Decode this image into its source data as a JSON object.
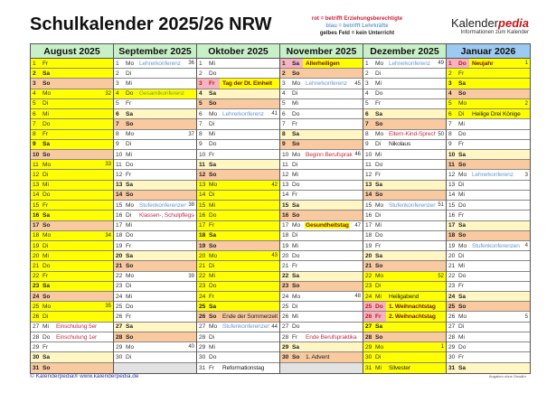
{
  "title": "Schulkalender 2025/26 NRW",
  "legend": {
    "red": "rot = betrifft Erziehungsberechtigte",
    "blue": "blau = betrifft Lehrkräfte",
    "yellow": "gelbes Feld =   kein Unterricht"
  },
  "brand": {
    "name_plain": "Kalender",
    "name_accent": "pedia",
    "subtitle": "Informationen zum Kalender"
  },
  "footer": {
    "copyright": "© Kalenderpedia®   www.kalenderpedia.de",
    "disclaimer": "Angaben ohne Gewähr"
  },
  "colors": {
    "ferien": "#ffff00",
    "saturday": "#fff6c4",
    "sunday": "#f9c9a0",
    "holiday": "#f6b4c0",
    "header": "#c8f0c8",
    "current_month": "#9ccaf0"
  },
  "months": [
    {
      "name": "August 2025",
      "days": [
        {
          "d": "1",
          "wd": "Fr",
          "t": "f"
        },
        {
          "d": "2",
          "wd": "Sa",
          "t": "f"
        },
        {
          "d": "3",
          "wd": "So",
          "t": "o"
        },
        {
          "d": "4",
          "wd": "Mo",
          "t": "f",
          "kw": "32"
        },
        {
          "d": "5",
          "wd": "Di",
          "t": "f"
        },
        {
          "d": "6",
          "wd": "Mi",
          "t": "f"
        },
        {
          "d": "7",
          "wd": "Do",
          "t": "f"
        },
        {
          "d": "8",
          "wd": "Fr",
          "t": "f"
        },
        {
          "d": "9",
          "wd": "Sa",
          "t": "f"
        },
        {
          "d": "10",
          "wd": "So",
          "t": "o"
        },
        {
          "d": "11",
          "wd": "Mo",
          "t": "f",
          "kw": "33"
        },
        {
          "d": "12",
          "wd": "Di",
          "t": "f"
        },
        {
          "d": "13",
          "wd": "Mi",
          "t": "f"
        },
        {
          "d": "14",
          "wd": "Do",
          "t": "f"
        },
        {
          "d": "15",
          "wd": "Fr",
          "t": "f"
        },
        {
          "d": "16",
          "wd": "Sa",
          "t": "f"
        },
        {
          "d": "17",
          "wd": "So",
          "t": "o"
        },
        {
          "d": "18",
          "wd": "Mo",
          "t": "f",
          "kw": "34"
        },
        {
          "d": "19",
          "wd": "Di",
          "t": "f"
        },
        {
          "d": "20",
          "wd": "Mi",
          "t": "f"
        },
        {
          "d": "21",
          "wd": "Do",
          "t": "f"
        },
        {
          "d": "22",
          "wd": "Fr",
          "t": "f"
        },
        {
          "d": "23",
          "wd": "Sa",
          "t": "f"
        },
        {
          "d": "24",
          "wd": "So",
          "t": "o"
        },
        {
          "d": "25",
          "wd": "Mo",
          "t": "f",
          "kw": "35"
        },
        {
          "d": "26",
          "wd": "Di",
          "t": "f"
        },
        {
          "d": "27",
          "wd": "Mi",
          "t": "w",
          "n": "Einschulung 5er",
          "c": "red"
        },
        {
          "d": "28",
          "wd": "Do",
          "t": "w",
          "n": "Einschulung 1er",
          "c": "red"
        },
        {
          "d": "29",
          "wd": "Fr",
          "t": "w"
        },
        {
          "d": "30",
          "wd": "Sa",
          "t": "s"
        },
        {
          "d": "31",
          "wd": "So",
          "t": "o"
        }
      ]
    },
    {
      "name": "September 2025",
      "days": [
        {
          "d": "1",
          "wd": "Mo",
          "t": "w",
          "n": "Lehrerkonferenz",
          "c": "blue",
          "kw": "36"
        },
        {
          "d": "2",
          "wd": "Di",
          "t": "w"
        },
        {
          "d": "3",
          "wd": "Mi",
          "t": "w"
        },
        {
          "d": "4",
          "wd": "Do",
          "t": "f",
          "n": "Gesamtkonferenz",
          "c": "green"
        },
        {
          "d": "5",
          "wd": "Fr",
          "t": "w"
        },
        {
          "d": "6",
          "wd": "Sa",
          "t": "s"
        },
        {
          "d": "7",
          "wd": "So",
          "t": "o"
        },
        {
          "d": "8",
          "wd": "Mo",
          "t": "w",
          "kw": "37"
        },
        {
          "d": "9",
          "wd": "Di",
          "t": "w"
        },
        {
          "d": "10",
          "wd": "Mi",
          "t": "w"
        },
        {
          "d": "11",
          "wd": "Do",
          "t": "w"
        },
        {
          "d": "12",
          "wd": "Fr",
          "t": "w"
        },
        {
          "d": "13",
          "wd": "Sa",
          "t": "s"
        },
        {
          "d": "14",
          "wd": "So",
          "t": "o"
        },
        {
          "d": "15",
          "wd": "Mo",
          "t": "w",
          "n": "Stufenkonferenzen",
          "c": "blue",
          "kw": "38"
        },
        {
          "d": "16",
          "wd": "Di",
          "t": "w",
          "n": "Klassen-, Schulpflegschaft",
          "c": "red"
        },
        {
          "d": "17",
          "wd": "Mi",
          "t": "w"
        },
        {
          "d": "18",
          "wd": "Do",
          "t": "w"
        },
        {
          "d": "19",
          "wd": "Fr",
          "t": "w"
        },
        {
          "d": "20",
          "wd": "Sa",
          "t": "s"
        },
        {
          "d": "21",
          "wd": "So",
          "t": "o"
        },
        {
          "d": "22",
          "wd": "Mo",
          "t": "w",
          "kw": "39"
        },
        {
          "d": "23",
          "wd": "Di",
          "t": "w"
        },
        {
          "d": "24",
          "wd": "Mi",
          "t": "w"
        },
        {
          "d": "25",
          "wd": "Do",
          "t": "w"
        },
        {
          "d": "26",
          "wd": "Fr",
          "t": "w"
        },
        {
          "d": "27",
          "wd": "Sa",
          "t": "s"
        },
        {
          "d": "28",
          "wd": "So",
          "t": "o"
        },
        {
          "d": "29",
          "wd": "Mo",
          "t": "w",
          "kw": "40"
        },
        {
          "d": "30",
          "wd": "Di",
          "t": "w"
        },
        {
          "t": "g"
        }
      ]
    },
    {
      "name": "Oktober 2025",
      "days": [
        {
          "d": "1",
          "wd": "Mi",
          "t": "w"
        },
        {
          "d": "2",
          "wd": "Do",
          "t": "w"
        },
        {
          "d": "3",
          "wd": "Fr",
          "t": "h",
          "n": "Tag der Dt. Einheit",
          "c": "dark"
        },
        {
          "d": "4",
          "wd": "Sa",
          "t": "s"
        },
        {
          "d": "5",
          "wd": "So",
          "t": "o"
        },
        {
          "d": "6",
          "wd": "Mo",
          "t": "w",
          "n": "Lehrerkonferenz",
          "c": "blue",
          "kw": "41"
        },
        {
          "d": "7",
          "wd": "Di",
          "t": "w"
        },
        {
          "d": "8",
          "wd": "Mi",
          "t": "w"
        },
        {
          "d": "9",
          "wd": "Do",
          "t": "w"
        },
        {
          "d": "10",
          "wd": "Fr",
          "t": "w"
        },
        {
          "d": "11",
          "wd": "Sa",
          "t": "s"
        },
        {
          "d": "12",
          "wd": "So",
          "t": "o"
        },
        {
          "d": "13",
          "wd": "Mo",
          "t": "f",
          "kw": "42"
        },
        {
          "d": "14",
          "wd": "Di",
          "t": "f"
        },
        {
          "d": "15",
          "wd": "Mi",
          "t": "f"
        },
        {
          "d": "16",
          "wd": "Do",
          "t": "f"
        },
        {
          "d": "17",
          "wd": "Fr",
          "t": "f"
        },
        {
          "d": "18",
          "wd": "Sa",
          "t": "f"
        },
        {
          "d": "19",
          "wd": "So",
          "t": "o"
        },
        {
          "d": "20",
          "wd": "Mo",
          "t": "f",
          "kw": "43"
        },
        {
          "d": "21",
          "wd": "Di",
          "t": "f"
        },
        {
          "d": "22",
          "wd": "Mi",
          "t": "f"
        },
        {
          "d": "23",
          "wd": "Do",
          "t": "f"
        },
        {
          "d": "24",
          "wd": "Fr",
          "t": "f"
        },
        {
          "d": "25",
          "wd": "Sa",
          "t": "f"
        },
        {
          "d": "26",
          "wd": "So",
          "t": "o",
          "n": "Ende der Sommerzeit",
          "c": "black"
        },
        {
          "d": "27",
          "wd": "Mo",
          "t": "w",
          "n": "Stufenkonferenzen",
          "c": "blue",
          "kw": "44"
        },
        {
          "d": "28",
          "wd": "Di",
          "t": "w"
        },
        {
          "d": "29",
          "wd": "Mi",
          "t": "w"
        },
        {
          "d": "30",
          "wd": "Do",
          "t": "w"
        },
        {
          "d": "31",
          "wd": "Fr",
          "t": "w",
          "n": "Reformationstag",
          "c": "black"
        }
      ]
    },
    {
      "name": "November 2025",
      "days": [
        {
          "d": "1",
          "wd": "Sa",
          "t": "h",
          "n": "Allerheiligen",
          "c": "dark"
        },
        {
          "d": "2",
          "wd": "So",
          "t": "o"
        },
        {
          "d": "3",
          "wd": "Mo",
          "t": "w",
          "n": "Lehrerkonferenz",
          "c": "blue",
          "kw": "45"
        },
        {
          "d": "4",
          "wd": "Di",
          "t": "w"
        },
        {
          "d": "5",
          "wd": "Mi",
          "t": "w"
        },
        {
          "d": "6",
          "wd": "Do",
          "t": "w"
        },
        {
          "d": "7",
          "wd": "Fr",
          "t": "w"
        },
        {
          "d": "8",
          "wd": "Sa",
          "t": "s"
        },
        {
          "d": "9",
          "wd": "So",
          "t": "o"
        },
        {
          "d": "10",
          "wd": "Mo",
          "t": "w",
          "n": "Beginn Berufspraktika",
          "c": "red",
          "kw": "46"
        },
        {
          "d": "11",
          "wd": "Di",
          "t": "w"
        },
        {
          "d": "12",
          "wd": "Mi",
          "t": "w"
        },
        {
          "d": "13",
          "wd": "Do",
          "t": "w"
        },
        {
          "d": "14",
          "wd": "Fr",
          "t": "w"
        },
        {
          "d": "15",
          "wd": "Sa",
          "t": "s"
        },
        {
          "d": "16",
          "wd": "So",
          "t": "o"
        },
        {
          "d": "17",
          "wd": "Mo",
          "t": "w",
          "n": "Gesundheitstag",
          "c": "dark",
          "hl": true,
          "kw": "47"
        },
        {
          "d": "18",
          "wd": "Di",
          "t": "w"
        },
        {
          "d": "19",
          "wd": "Mi",
          "t": "w"
        },
        {
          "d": "20",
          "wd": "Do",
          "t": "w"
        },
        {
          "d": "21",
          "wd": "Fr",
          "t": "w"
        },
        {
          "d": "22",
          "wd": "Sa",
          "t": "s"
        },
        {
          "d": "23",
          "wd": "So",
          "t": "o"
        },
        {
          "d": "24",
          "wd": "Mo",
          "t": "w",
          "kw": "48"
        },
        {
          "d": "25",
          "wd": "Di",
          "t": "w"
        },
        {
          "d": "26",
          "wd": "Mi",
          "t": "w"
        },
        {
          "d": "27",
          "wd": "Do",
          "t": "w"
        },
        {
          "d": "28",
          "wd": "Fr",
          "t": "w",
          "n": "Ende Berufspraktika",
          "c": "red"
        },
        {
          "d": "29",
          "wd": "Sa",
          "t": "s"
        },
        {
          "d": "30",
          "wd": "So",
          "t": "o",
          "n": "1. Advent",
          "c": "black"
        },
        {
          "t": "g"
        }
      ]
    },
    {
      "name": "Dezember 2025",
      "days": [
        {
          "d": "1",
          "wd": "Mo",
          "t": "w",
          "n": "Lehrerkonferenz",
          "c": "blue",
          "kw": "49"
        },
        {
          "d": "2",
          "wd": "Di",
          "t": "w"
        },
        {
          "d": "3",
          "wd": "Mi",
          "t": "w"
        },
        {
          "d": "4",
          "wd": "Do",
          "t": "w"
        },
        {
          "d": "5",
          "wd": "Fr",
          "t": "w"
        },
        {
          "d": "6",
          "wd": "Sa",
          "t": "s"
        },
        {
          "d": "7",
          "wd": "So",
          "t": "o"
        },
        {
          "d": "8",
          "wd": "Mo",
          "t": "w",
          "n": "Eltern-Kind-Sprechtag",
          "c": "red",
          "kw": "50"
        },
        {
          "d": "9",
          "wd": "Di",
          "t": "w",
          "n": "Nikolaus",
          "c": "black"
        },
        {
          "d": "10",
          "wd": "Mi",
          "t": "w"
        },
        {
          "d": "11",
          "wd": "Do",
          "t": "w"
        },
        {
          "d": "12",
          "wd": "Fr",
          "t": "w"
        },
        {
          "d": "13",
          "wd": "Sa",
          "t": "s"
        },
        {
          "d": "14",
          "wd": "So",
          "t": "o"
        },
        {
          "d": "15",
          "wd": "Mo",
          "t": "w",
          "n": "Stufenkonferenzen",
          "c": "blue",
          "kw": "51"
        },
        {
          "d": "16",
          "wd": "Di",
          "t": "w"
        },
        {
          "d": "17",
          "wd": "Mi",
          "t": "w"
        },
        {
          "d": "18",
          "wd": "Do",
          "t": "w"
        },
        {
          "d": "19",
          "wd": "Fr",
          "t": "w"
        },
        {
          "d": "20",
          "wd": "Sa",
          "t": "s"
        },
        {
          "d": "21",
          "wd": "So",
          "t": "o"
        },
        {
          "d": "22",
          "wd": "Mo",
          "t": "f",
          "kw": "52"
        },
        {
          "d": "23",
          "wd": "Di",
          "t": "f"
        },
        {
          "d": "24",
          "wd": "Mi",
          "t": "f",
          "n": "Heiligabend",
          "c": "black"
        },
        {
          "d": "25",
          "wd": "Do",
          "t": "h",
          "n": "1. Weihnachtstag",
          "c": "dark"
        },
        {
          "d": "26",
          "wd": "Fr",
          "t": "h",
          "n": "2. Weihnachtstag",
          "c": "dark"
        },
        {
          "d": "27",
          "wd": "Sa",
          "t": "f"
        },
        {
          "d": "28",
          "wd": "So",
          "t": "o"
        },
        {
          "d": "29",
          "wd": "Mo",
          "t": "f",
          "kw": "1"
        },
        {
          "d": "30",
          "wd": "Di",
          "t": "f"
        },
        {
          "d": "31",
          "wd": "Mi",
          "t": "f",
          "n": "Silvester",
          "c": "black"
        }
      ]
    },
    {
      "name": "Januar 2026",
      "current": true,
      "days": [
        {
          "d": "1",
          "wd": "Do",
          "t": "h",
          "n": "Neujahr",
          "c": "dark",
          "kw": "1"
        },
        {
          "d": "2",
          "wd": "Fr",
          "t": "f"
        },
        {
          "d": "3",
          "wd": "Sa",
          "t": "f"
        },
        {
          "d": "4",
          "wd": "So",
          "t": "o"
        },
        {
          "d": "5",
          "wd": "Mo",
          "t": "f",
          "kw": "2"
        },
        {
          "d": "6",
          "wd": "Di",
          "t": "f",
          "n": "Heilige Drei Könige",
          "c": "black"
        },
        {
          "d": "7",
          "wd": "Mi",
          "t": "w"
        },
        {
          "d": "8",
          "wd": "Do",
          "t": "w"
        },
        {
          "d": "9",
          "wd": "Fr",
          "t": "w"
        },
        {
          "d": "10",
          "wd": "Sa",
          "t": "s"
        },
        {
          "d": "11",
          "wd": "So",
          "t": "o"
        },
        {
          "d": "12",
          "wd": "Mo",
          "t": "w",
          "n": "Lehrerkonferenz",
          "c": "blue",
          "kw": "3"
        },
        {
          "d": "13",
          "wd": "Di",
          "t": "w"
        },
        {
          "d": "14",
          "wd": "Mi",
          "t": "w"
        },
        {
          "d": "15",
          "wd": "Do",
          "t": "w"
        },
        {
          "d": "16",
          "wd": "Fr",
          "t": "w"
        },
        {
          "d": "17",
          "wd": "Sa",
          "t": "s"
        },
        {
          "d": "18",
          "wd": "So",
          "t": "o"
        },
        {
          "d": "19",
          "wd": "Mo",
          "t": "w",
          "n": "Stufenkonferenzen",
          "c": "blue",
          "kw": "4"
        },
        {
          "d": "20",
          "wd": "Di",
          "t": "w"
        },
        {
          "d": "21",
          "wd": "Mi",
          "t": "w"
        },
        {
          "d": "22",
          "wd": "Do",
          "t": "w"
        },
        {
          "d": "23",
          "wd": "Fr",
          "t": "w"
        },
        {
          "d": "24",
          "wd": "Sa",
          "t": "s"
        },
        {
          "d": "25",
          "wd": "So",
          "t": "o"
        },
        {
          "d": "26",
          "wd": "Mo",
          "t": "w",
          "kw": "5"
        },
        {
          "d": "27",
          "wd": "Di",
          "t": "w"
        },
        {
          "d": "28",
          "wd": "Mi",
          "t": "w"
        },
        {
          "d": "29",
          "wd": "Do",
          "t": "w"
        },
        {
          "d": "30",
          "wd": "Fr",
          "t": "w"
        },
        {
          "d": "31",
          "wd": "Sa",
          "t": "s"
        }
      ]
    }
  ]
}
